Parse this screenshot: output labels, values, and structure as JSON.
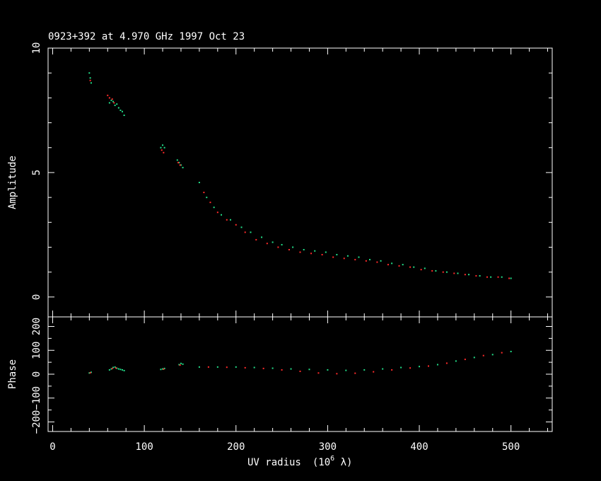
{
  "chart_data": {
    "type": "scatter",
    "title": "0923+392 at 4.970 GHz 1997 Oct 23",
    "xlabel_main": "UV radius",
    "xlabel_unit": "(10",
    "xlabel_exp": "6",
    "xlabel_end": " λ)",
    "x_ticks": [
      "0",
      "100",
      "200",
      "300",
      "400",
      "500"
    ],
    "xlim": [
      -5,
      545
    ],
    "colors": {
      "axes": "#ffffff",
      "rr": "#ff2a2a",
      "ll": "#22dd88"
    },
    "panels": [
      {
        "id": "amplitude",
        "ylabel": "Amplitude",
        "ylim": [
          -0.8,
          10
        ],
        "y_ticks": [
          "0",
          "5",
          "10"
        ],
        "y_tick_values": [
          0,
          5,
          10
        ],
        "series": [
          {
            "color_key": "ll",
            "x": [
              40,
              41,
              42,
              62,
              64,
              66,
              68,
              70,
              72,
              74,
              76,
              78,
              118,
              120,
              122,
              136,
              138,
              140,
              142,
              160,
              168,
              176,
              184,
              194,
              206,
              216,
              228,
              240,
              250,
              262,
              274,
              286,
              298,
              310,
              322,
              334,
              346,
              358,
              370,
              382,
              394,
              406,
              418,
              430,
              442,
              454,
              466,
              478,
              490,
              500
            ],
            "y": [
              9.0,
              8.8,
              8.6,
              7.8,
              7.9,
              7.85,
              7.7,
              7.75,
              7.6,
              7.5,
              7.45,
              7.3,
              6.0,
              6.1,
              6.0,
              5.5,
              5.4,
              5.3,
              5.2,
              4.6,
              4.0,
              3.6,
              3.3,
              3.1,
              2.8,
              2.6,
              2.4,
              2.2,
              2.1,
              2.0,
              1.9,
              1.85,
              1.8,
              1.7,
              1.65,
              1.6,
              1.5,
              1.45,
              1.35,
              1.3,
              1.2,
              1.15,
              1.05,
              1.0,
              0.95,
              0.9,
              0.85,
              0.8,
              0.8,
              0.75
            ]
          },
          {
            "color_key": "rr",
            "x": [
              41,
              60,
              62,
              65,
              67,
              119,
              121,
              137,
              139,
              165,
              172,
              180,
              190,
              200,
              210,
              222,
              234,
              246,
              258,
              270,
              282,
              294,
              306,
              318,
              330,
              342,
              354,
              366,
              378,
              390,
              402,
              414,
              426,
              438,
              450,
              462,
              474,
              486,
              498
            ],
            "y": [
              8.7,
              8.1,
              8.0,
              7.95,
              7.8,
              5.9,
              5.8,
              5.4,
              5.3,
              4.2,
              3.8,
              3.4,
              3.1,
              2.9,
              2.6,
              2.3,
              2.15,
              2.0,
              1.9,
              1.8,
              1.75,
              1.7,
              1.6,
              1.55,
              1.5,
              1.45,
              1.4,
              1.3,
              1.25,
              1.2,
              1.1,
              1.05,
              1.0,
              0.95,
              0.9,
              0.85,
              0.8,
              0.8,
              0.75
            ]
          }
        ]
      },
      {
        "id": "phase",
        "ylabel": "Phase",
        "ylim": [
          -240,
          240
        ],
        "y_ticks": [
          "200",
          "100",
          "0",
          "−100",
          "−200"
        ],
        "y_tick_values": [
          200,
          100,
          0,
          -100,
          -200
        ],
        "series": [
          {
            "color_key": "ll",
            "x": [
              40,
              42,
              62,
              64,
              66,
              68,
              70,
              72,
              74,
              76,
              78,
              118,
              120,
              122,
              138,
              140,
              142,
              160,
              180,
              200,
              220,
              240,
              260,
              280,
              300,
              320,
              340,
              360,
              380,
              400,
              420,
              440,
              460,
              480,
              500
            ],
            "y": [
              5,
              8,
              18,
              22,
              28,
              30,
              25,
              22,
              20,
              18,
              15,
              20,
              22,
              24,
              40,
              45,
              42,
              30,
              30,
              30,
              28,
              25,
              22,
              20,
              18,
              16,
              18,
              22,
              28,
              32,
              40,
              55,
              70,
              82,
              95
            ]
          },
          {
            "color_key": "rr",
            "x": [
              41,
              65,
              69,
              121,
              139,
              170,
              190,
              210,
              230,
              250,
              270,
              290,
              310,
              330,
              350,
              370,
              390,
              410,
              430,
              450,
              470,
              490
            ],
            "y": [
              6,
              24,
              26,
              21,
              38,
              30,
              29,
              27,
              24,
              18,
              12,
              5,
              2,
              4,
              10,
              18,
              26,
              34,
              46,
              62,
              78,
              90
            ]
          }
        ]
      }
    ]
  }
}
